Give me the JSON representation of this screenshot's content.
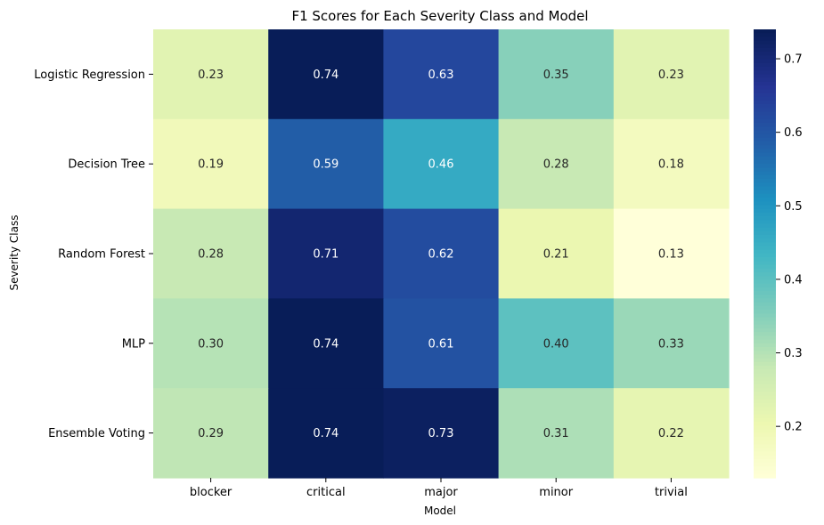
{
  "chart_data": {
    "type": "heatmap",
    "title": "F1 Scores for Each Severity Class and Model",
    "xlabel": "Model",
    "ylabel": "Severity Class",
    "x_categories": [
      "blocker",
      "critical",
      "major",
      "minor",
      "trivial"
    ],
    "y_categories": [
      "Logistic Regression",
      "Decision Tree",
      "Random Forest",
      "MLP",
      "Ensemble Voting"
    ],
    "values": [
      [
        0.23,
        0.74,
        0.63,
        0.35,
        0.23
      ],
      [
        0.19,
        0.59,
        0.46,
        0.28,
        0.18
      ],
      [
        0.28,
        0.71,
        0.62,
        0.21,
        0.13
      ],
      [
        0.3,
        0.74,
        0.61,
        0.4,
        0.33
      ],
      [
        0.29,
        0.74,
        0.73,
        0.31,
        0.22
      ]
    ],
    "value_labels": [
      [
        "0.23",
        "0.74",
        "0.63",
        "0.35",
        "0.23"
      ],
      [
        "0.19",
        "0.59",
        "0.46",
        "0.28",
        "0.18"
      ],
      [
        "0.28",
        "0.71",
        "0.62",
        "0.21",
        "0.13"
      ],
      [
        "0.30",
        "0.74",
        "0.61",
        "0.40",
        "0.33"
      ],
      [
        "0.29",
        "0.74",
        "0.73",
        "0.31",
        "0.22"
      ]
    ],
    "colormap": "YlGnBu",
    "colorbar": {
      "range": [
        0.13,
        0.74
      ],
      "ticks": [
        0.2,
        0.3,
        0.4,
        0.5,
        0.6,
        0.7
      ],
      "tick_labels": [
        "0.2",
        "0.3",
        "0.4",
        "0.5",
        "0.6",
        "0.7"
      ],
      "placement": "right"
    },
    "grid": false
  }
}
